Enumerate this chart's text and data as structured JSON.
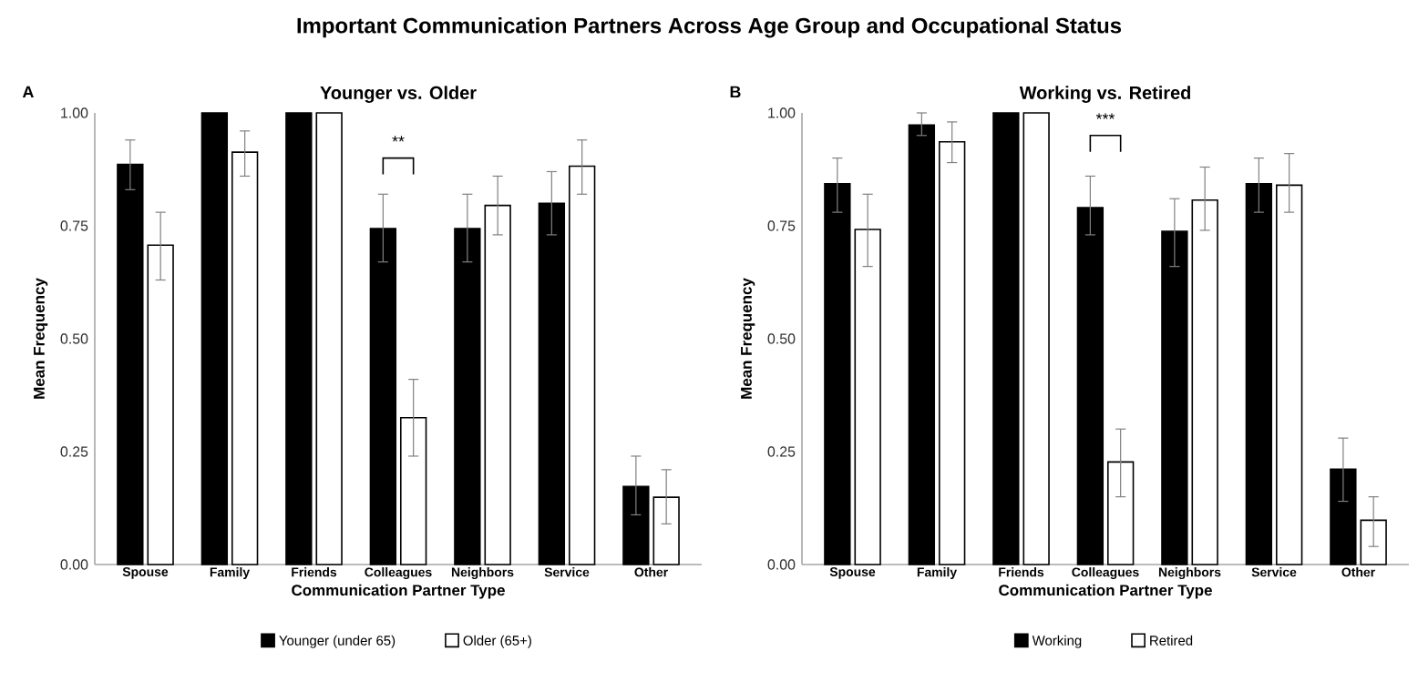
{
  "chart_data": [
    {
      "type": "bar",
      "title": "Younger vs. Older",
      "xlabel": "Communication Partner Type",
      "ylabel": "Mean Frequency",
      "categories": [
        "Spouse",
        "Family",
        "Friends",
        "Colleagues",
        "Neighbors",
        "Service",
        "Other"
      ],
      "series": [
        {
          "name": "Younger (under 65)",
          "color": "#000000",
          "values": [
            0.886,
            1.0,
            1.0,
            0.744,
            0.744,
            0.8,
            0.173
          ],
          "errors": [
            [
              0.83,
              0.94
            ],
            null,
            null,
            [
              0.67,
              0.82
            ],
            [
              0.67,
              0.82
            ],
            [
              0.73,
              0.87
            ],
            [
              0.11,
              0.24
            ]
          ]
        },
        {
          "name": "Older (65+)",
          "color": "#ffffff",
          "values": [
            0.707,
            0.913,
            1.0,
            0.325,
            0.795,
            0.882,
            0.149
          ],
          "errors": [
            [
              0.63,
              0.78
            ],
            [
              0.86,
              0.96
            ],
            null,
            [
              0.24,
              0.41
            ],
            [
              0.73,
              0.86
            ],
            [
              0.82,
              0.94
            ],
            [
              0.09,
              0.21
            ]
          ]
        }
      ],
      "ylim": [
        0,
        1.0
      ],
      "yticks": [
        {
          "value": 0,
          "label": "0.00"
        },
        {
          "value": 0.25,
          "label": "0.25"
        },
        {
          "value": 0.5,
          "label": "0.50"
        },
        {
          "value": 0.75,
          "label": "0.75"
        },
        {
          "value": 1.0,
          "label": "1.00"
        }
      ],
      "grid": false,
      "legend": "bottom",
      "annotations": [
        "Important Communication Partners Across Age Group and Occupational Status",
        "A",
        "**"
      ]
    },
    {
      "type": "bar",
      "title": "Working vs. Retired",
      "xlabel": "Communication Partner Type",
      "ylabel": "Mean Frequency",
      "categories": [
        "Spouse",
        "Family",
        "Friends",
        "Colleagues",
        "Neighbors",
        "Service",
        "Other"
      ],
      "series": [
        {
          "name": "Working",
          "color": "#000000",
          "values": [
            0.843,
            0.973,
            1.0,
            0.79,
            0.738,
            0.843,
            0.211
          ],
          "errors": [
            [
              0.78,
              0.9
            ],
            [
              0.95,
              1.0
            ],
            null,
            [
              0.73,
              0.86
            ],
            [
              0.66,
              0.81
            ],
            [
              0.78,
              0.9
            ],
            [
              0.14,
              0.28
            ]
          ]
        },
        {
          "name": "Retired",
          "color": "#ffffff",
          "values": [
            0.742,
            0.936,
            1.0,
            0.227,
            0.807,
            0.84,
            0.098
          ],
          "errors": [
            [
              0.66,
              0.82
            ],
            [
              0.89,
              0.98
            ],
            null,
            [
              0.15,
              0.3
            ],
            [
              0.74,
              0.88
            ],
            [
              0.78,
              0.91
            ],
            [
              0.04,
              0.15
            ]
          ]
        }
      ],
      "ylim": [
        0,
        1.0
      ],
      "yticks": [
        {
          "value": 0,
          "label": "0.00"
        },
        {
          "value": 0.25,
          "label": "0.25"
        },
        {
          "value": 0.5,
          "label": "0.50"
        },
        {
          "value": 0.75,
          "label": "0.75"
        },
        {
          "value": 1.0,
          "label": "1.00"
        }
      ],
      "grid": false,
      "legend": "bottom",
      "annotations": [
        "B",
        "***"
      ]
    }
  ]
}
